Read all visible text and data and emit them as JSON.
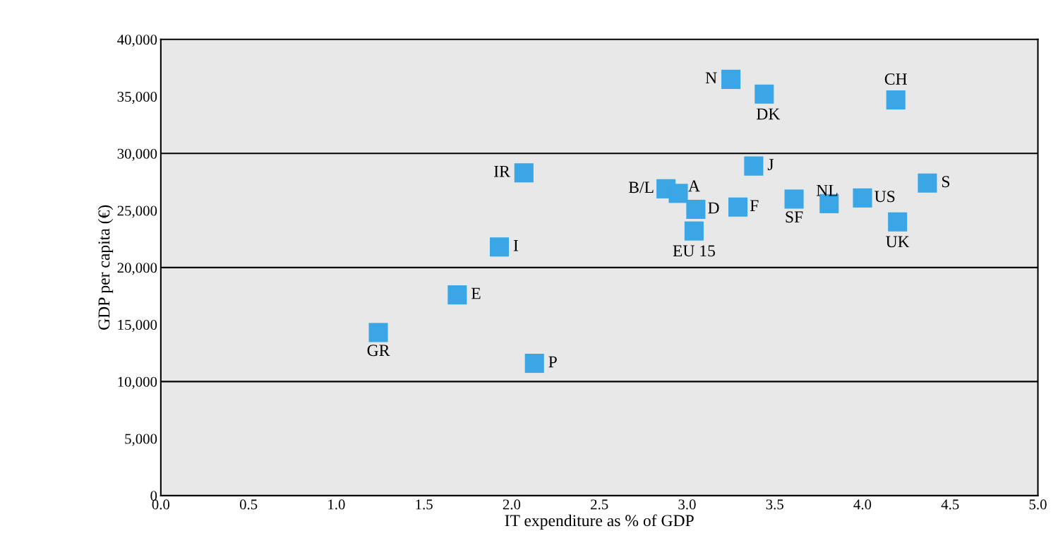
{
  "chart_data": {
    "type": "scatter",
    "xlabel": "IT expenditure as % of GDP",
    "ylabel": "GDP per capita (€)",
    "x": [
      3.25,
      3.44,
      4.19,
      2.07,
      3.38,
      2.88,
      2.95,
      3.05,
      3.29,
      3.61,
      3.81,
      4.0,
      4.37,
      4.2,
      3.04,
      1.93,
      1.69,
      1.24,
      2.13
    ],
    "series": [
      {
        "color": "#3aa6e6",
        "values": [
          36500,
          35200,
          34700,
          28300,
          28900,
          26900,
          26500,
          25100,
          25300,
          26000,
          25600,
          26100,
          27400,
          24000,
          23200,
          21800,
          17600,
          14300,
          11600
        ]
      }
    ],
    "marker": "square",
    "grid": false,
    "xlim": [
      0,
      5
    ],
    "ylim": [
      0,
      40000
    ],
    "xticks": [
      {
        "value": 0,
        "label": "0.0"
      },
      {
        "value": 0.5,
        "label": "0.5"
      },
      {
        "value": 1,
        "label": "1.0"
      },
      {
        "value": 1.5,
        "label": "1.5"
      },
      {
        "value": 2,
        "label": "2.0"
      },
      {
        "value": 2.5,
        "label": "2.5"
      },
      {
        "value": 3,
        "label": "3.0"
      },
      {
        "value": 3.5,
        "label": "3.5"
      },
      {
        "value": 4,
        "label": "4.0"
      },
      {
        "value": 4.5,
        "label": "4.5"
      },
      {
        "value": 5,
        "label": "5.0"
      }
    ],
    "yticks": [
      0,
      {
        "value": 5000,
        "label": "5,000"
      },
      {
        "value": 10000,
        "label": "10,000"
      },
      {
        "value": 15000,
        "label": "15,000"
      },
      {
        "value": 20000,
        "label": "20,000"
      },
      {
        "value": 25000,
        "label": "25,000"
      },
      {
        "value": 30000,
        "label": "30,000"
      },
      {
        "value": 35000,
        "label": "35,000"
      },
      {
        "value": 40000,
        "label": "40,000"
      }
    ],
    "ref_lines": [
      {
        "axis": "y",
        "value": 10000,
        "color": "#000000"
      },
      {
        "axis": "y",
        "value": 20000,
        "color": "#000000"
      },
      {
        "axis": "y",
        "value": 30000,
        "color": "#000000"
      }
    ],
    "annotations": [
      {
        "text": "N",
        "x": 3.25,
        "y": 36500
      },
      {
        "text": "DK",
        "x": 3.44,
        "y": 35200
      },
      {
        "text": "CH",
        "x": 4.19,
        "y": 34700
      },
      {
        "text": "IR",
        "x": 2.07,
        "y": 28300
      },
      {
        "text": "J",
        "x": 3.38,
        "y": 28900
      },
      {
        "text": "B/L",
        "x": 2.88,
        "y": 26900
      },
      {
        "text": "A",
        "x": 2.95,
        "y": 26500
      },
      {
        "text": "D",
        "x": 3.05,
        "y": 25100
      },
      {
        "text": "F",
        "x": 3.29,
        "y": 25300
      },
      {
        "text": "SF",
        "x": 3.61,
        "y": 26000
      },
      {
        "text": "NL",
        "x": 3.81,
        "y": 25600
      },
      {
        "text": "US",
        "x": 4.0,
        "y": 26100
      },
      {
        "text": "S",
        "x": 4.37,
        "y": 27400
      },
      {
        "text": "UK",
        "x": 4.2,
        "y": 24000
      },
      {
        "text": "EU 15",
        "x": 3.04,
        "y": 23200
      },
      {
        "text": "I",
        "x": 1.93,
        "y": 21800
      },
      {
        "text": "E",
        "x": 1.69,
        "y": 17600
      },
      {
        "text": "GR",
        "x": 1.24,
        "y": 14300
      },
      {
        "text": "P",
        "x": 2.13,
        "y": 11600
      }
    ]
  }
}
